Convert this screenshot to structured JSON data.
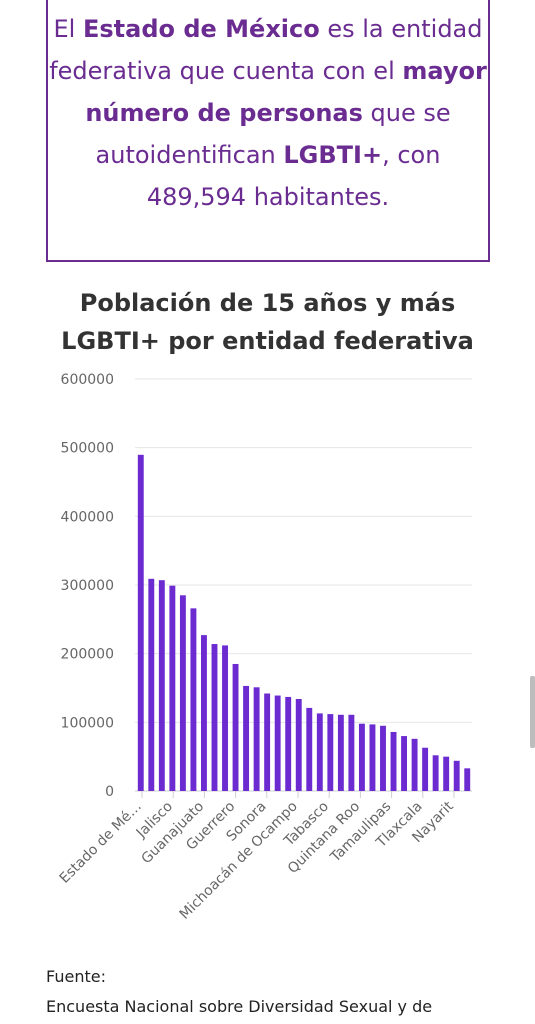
{
  "callout": {
    "t1": "El ",
    "b1": "Estado de México",
    "t2": " es la entidad federativa que cuenta con el ",
    "b2": "mayor número de personas",
    "t3": " que se autoidentifican ",
    "b3": "LGBTI+",
    "t4": ", con 489,594 habitantes."
  },
  "source": {
    "label": "Fuente:",
    "text": "Encuesta Nacional sobre Diversidad Sexual y de"
  },
  "colors": {
    "accent": "#6a2c91",
    "bar": "#6b2bd1"
  },
  "chart_data": {
    "type": "bar",
    "title_line1": "Población de 15 años y más",
    "title_line2": "LGBTI+ por entidad federativa",
    "ylim": [
      0,
      600000
    ],
    "y_ticks": [
      "0",
      "100000",
      "200000",
      "300000",
      "400000",
      "500000",
      "600000"
    ],
    "values": [
      489594,
      309000,
      307000,
      299000,
      285000,
      266000,
      227000,
      214000,
      212000,
      185000,
      153000,
      151000,
      142000,
      139000,
      137000,
      134000,
      121000,
      113000,
      112000,
      111000,
      111000,
      98000,
      97000,
      95000,
      86000,
      80000,
      76000,
      63000,
      52000,
      50000,
      44000,
      33000
    ],
    "x_tick_labels": [
      {
        "index": 0,
        "label": "Estado de Mé…"
      },
      {
        "index": 3,
        "label": "Jalisco"
      },
      {
        "index": 7,
        "label": "Guanajuato"
      },
      {
        "index": 11,
        "label": "Guerrero"
      },
      {
        "index": 15,
        "label": "Sonora"
      },
      {
        "index": 19,
        "label": "Michoacán de Ocampo"
      },
      {
        "index": 23,
        "label": "Tabasco"
      },
      {
        "index": 27,
        "label": "Quintana Roo"
      },
      {
        "index": 31,
        "label": "Tamaulipas"
      },
      {
        "index": 35,
        "label": "Tlaxcala"
      },
      {
        "index": 39,
        "label": "Nayarit"
      }
    ],
    "grid": true,
    "legend": "none"
  }
}
